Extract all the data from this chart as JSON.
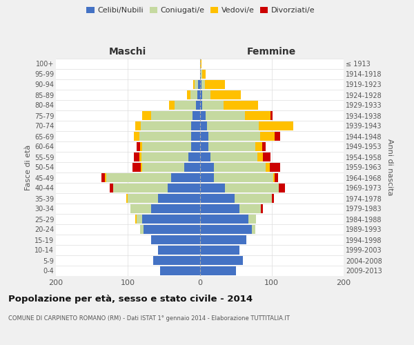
{
  "age_groups": [
    "0-4",
    "5-9",
    "10-14",
    "15-19",
    "20-24",
    "25-29",
    "30-34",
    "35-39",
    "40-44",
    "45-49",
    "50-54",
    "55-59",
    "60-64",
    "65-69",
    "70-74",
    "75-79",
    "80-84",
    "85-89",
    "90-94",
    "95-99",
    "100+"
  ],
  "birth_years": [
    "2009-2013",
    "2004-2008",
    "1999-2003",
    "1994-1998",
    "1989-1993",
    "1984-1988",
    "1979-1983",
    "1974-1978",
    "1969-1973",
    "1964-1968",
    "1959-1963",
    "1954-1958",
    "1949-1953",
    "1944-1948",
    "1939-1943",
    "1934-1938",
    "1929-1933",
    "1924-1928",
    "1919-1923",
    "1914-1918",
    "≤ 1913"
  ],
  "male": {
    "celibi": [
      55,
      65,
      58,
      68,
      78,
      80,
      68,
      58,
      45,
      40,
      22,
      16,
      12,
      12,
      12,
      10,
      5,
      3,
      2,
      0,
      0
    ],
    "coniugati": [
      0,
      0,
      0,
      0,
      5,
      8,
      28,
      42,
      75,
      90,
      58,
      65,
      68,
      72,
      70,
      58,
      30,
      10,
      5,
      0,
      0
    ],
    "vedovi": [
      0,
      0,
      0,
      0,
      0,
      2,
      0,
      2,
      0,
      2,
      2,
      3,
      3,
      8,
      8,
      12,
      8,
      5,
      2,
      0,
      0
    ],
    "divorziati": [
      0,
      0,
      0,
      0,
      0,
      0,
      0,
      0,
      5,
      5,
      12,
      8,
      5,
      0,
      0,
      0,
      0,
      0,
      0,
      0,
      0
    ]
  },
  "female": {
    "nubili": [
      50,
      60,
      55,
      65,
      72,
      68,
      55,
      48,
      35,
      20,
      20,
      15,
      12,
      12,
      10,
      8,
      3,
      3,
      2,
      1,
      0
    ],
    "coniugate": [
      0,
      0,
      0,
      0,
      5,
      10,
      30,
      52,
      75,
      82,
      72,
      65,
      65,
      72,
      72,
      55,
      30,
      12,
      5,
      2,
      0
    ],
    "vedove": [
      0,
      0,
      0,
      0,
      0,
      0,
      0,
      0,
      0,
      2,
      5,
      8,
      10,
      20,
      48,
      35,
      48,
      42,
      28,
      5,
      2
    ],
    "divorziate": [
      0,
      0,
      0,
      0,
      0,
      0,
      3,
      3,
      8,
      5,
      15,
      10,
      5,
      8,
      0,
      3,
      0,
      0,
      0,
      0,
      0
    ]
  },
  "colors": {
    "celibi": "#4472c4",
    "coniugati": "#c5d9a0",
    "vedovi": "#ffc000",
    "divorziati": "#cc0000"
  },
  "xlim": 200,
  "title": "Popolazione per età, sesso e stato civile - 2014",
  "subtitle": "COMUNE DI CARPINETO ROMANO (RM) - Dati ISTAT 1° gennaio 2014 - Elaborazione TUTTITALIA.IT",
  "ylabel_left": "Fasce di età",
  "ylabel_right": "Anni di nascita",
  "xlabel_left": "Maschi",
  "xlabel_right": "Femmine",
  "bg_color": "#f0f0f0",
  "plot_bg": "#ffffff",
  "grid_color": "#cccccc"
}
